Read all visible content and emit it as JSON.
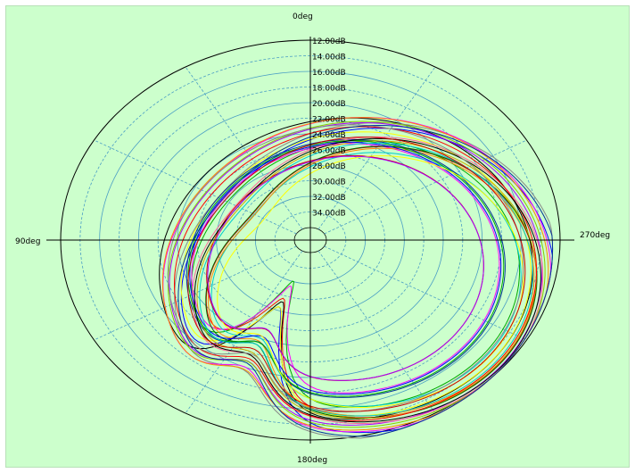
{
  "chart_data": {
    "type": "polar-line",
    "angle_labels": {
      "top": "0deg",
      "left": "90deg",
      "right": "270deg",
      "bottom": "180deg"
    },
    "radial_unit": "dB",
    "radial_ticks": [
      "12.00dB",
      "14.00dB",
      "16.00dB",
      "18.00dB",
      "20.00dB",
      "22.00dB",
      "24.00dB",
      "26.00dB",
      "28.00dB",
      "30.00dB",
      "32.00dB",
      "34.00dB"
    ],
    "radial_range": [
      12,
      36
    ],
    "angular_grid_deg": 30,
    "colors": {
      "background": "#ccffcc",
      "outer_ring": "#000000",
      "grid_ring": "#4a9ec4",
      "axis": "#000000"
    },
    "series_colors": [
      "#ff0000",
      "#0000ff",
      "#00aa00",
      "#ff00ff",
      "#000000",
      "#ffff00",
      "#00cccc",
      "#ff8800",
      "#888888",
      "#aa00ff",
      "#cc0000",
      "#003399",
      "#88cc00",
      "#ff6699",
      "#006600",
      "#ccaa00"
    ]
  }
}
